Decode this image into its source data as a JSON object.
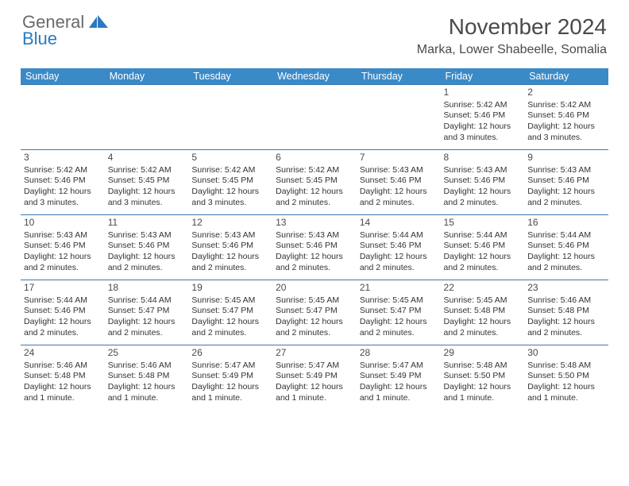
{
  "logo": {
    "line1": "General",
    "line2": "Blue"
  },
  "title": "November 2024",
  "location": "Marka, Lower Shabeelle, Somalia",
  "colors": {
    "header_bg": "#3a8ac8",
    "header_text": "#ffffff",
    "row_border": "#3a79b0",
    "text": "#333333",
    "title_text": "#4a4a4a",
    "logo_gray": "#6a6a6a",
    "logo_blue": "#2a7ac0",
    "background": "#ffffff"
  },
  "typography": {
    "title_fontsize": 28,
    "location_fontsize": 16,
    "weekday_fontsize": 12.5,
    "daynum_fontsize": 12,
    "cell_fontsize": 10.5,
    "font_family": "Arial"
  },
  "weekdays": [
    "Sunday",
    "Monday",
    "Tuesday",
    "Wednesday",
    "Thursday",
    "Friday",
    "Saturday"
  ],
  "weeks": [
    [
      null,
      null,
      null,
      null,
      null,
      {
        "n": "1",
        "sr": "5:42 AM",
        "ss": "5:46 PM",
        "dl": "12 hours and 3 minutes."
      },
      {
        "n": "2",
        "sr": "5:42 AM",
        "ss": "5:46 PM",
        "dl": "12 hours and 3 minutes."
      }
    ],
    [
      {
        "n": "3",
        "sr": "5:42 AM",
        "ss": "5:46 PM",
        "dl": "12 hours and 3 minutes."
      },
      {
        "n": "4",
        "sr": "5:42 AM",
        "ss": "5:45 PM",
        "dl": "12 hours and 3 minutes."
      },
      {
        "n": "5",
        "sr": "5:42 AM",
        "ss": "5:45 PM",
        "dl": "12 hours and 3 minutes."
      },
      {
        "n": "6",
        "sr": "5:42 AM",
        "ss": "5:45 PM",
        "dl": "12 hours and 2 minutes."
      },
      {
        "n": "7",
        "sr": "5:43 AM",
        "ss": "5:46 PM",
        "dl": "12 hours and 2 minutes."
      },
      {
        "n": "8",
        "sr": "5:43 AM",
        "ss": "5:46 PM",
        "dl": "12 hours and 2 minutes."
      },
      {
        "n": "9",
        "sr": "5:43 AM",
        "ss": "5:46 PM",
        "dl": "12 hours and 2 minutes."
      }
    ],
    [
      {
        "n": "10",
        "sr": "5:43 AM",
        "ss": "5:46 PM",
        "dl": "12 hours and 2 minutes."
      },
      {
        "n": "11",
        "sr": "5:43 AM",
        "ss": "5:46 PM",
        "dl": "12 hours and 2 minutes."
      },
      {
        "n": "12",
        "sr": "5:43 AM",
        "ss": "5:46 PM",
        "dl": "12 hours and 2 minutes."
      },
      {
        "n": "13",
        "sr": "5:43 AM",
        "ss": "5:46 PM",
        "dl": "12 hours and 2 minutes."
      },
      {
        "n": "14",
        "sr": "5:44 AM",
        "ss": "5:46 PM",
        "dl": "12 hours and 2 minutes."
      },
      {
        "n": "15",
        "sr": "5:44 AM",
        "ss": "5:46 PM",
        "dl": "12 hours and 2 minutes."
      },
      {
        "n": "16",
        "sr": "5:44 AM",
        "ss": "5:46 PM",
        "dl": "12 hours and 2 minutes."
      }
    ],
    [
      {
        "n": "17",
        "sr": "5:44 AM",
        "ss": "5:46 PM",
        "dl": "12 hours and 2 minutes."
      },
      {
        "n": "18",
        "sr": "5:44 AM",
        "ss": "5:47 PM",
        "dl": "12 hours and 2 minutes."
      },
      {
        "n": "19",
        "sr": "5:45 AM",
        "ss": "5:47 PM",
        "dl": "12 hours and 2 minutes."
      },
      {
        "n": "20",
        "sr": "5:45 AM",
        "ss": "5:47 PM",
        "dl": "12 hours and 2 minutes."
      },
      {
        "n": "21",
        "sr": "5:45 AM",
        "ss": "5:47 PM",
        "dl": "12 hours and 2 minutes."
      },
      {
        "n": "22",
        "sr": "5:45 AM",
        "ss": "5:48 PM",
        "dl": "12 hours and 2 minutes."
      },
      {
        "n": "23",
        "sr": "5:46 AM",
        "ss": "5:48 PM",
        "dl": "12 hours and 2 minutes."
      }
    ],
    [
      {
        "n": "24",
        "sr": "5:46 AM",
        "ss": "5:48 PM",
        "dl": "12 hours and 1 minute."
      },
      {
        "n": "25",
        "sr": "5:46 AM",
        "ss": "5:48 PM",
        "dl": "12 hours and 1 minute."
      },
      {
        "n": "26",
        "sr": "5:47 AM",
        "ss": "5:49 PM",
        "dl": "12 hours and 1 minute."
      },
      {
        "n": "27",
        "sr": "5:47 AM",
        "ss": "5:49 PM",
        "dl": "12 hours and 1 minute."
      },
      {
        "n": "28",
        "sr": "5:47 AM",
        "ss": "5:49 PM",
        "dl": "12 hours and 1 minute."
      },
      {
        "n": "29",
        "sr": "5:48 AM",
        "ss": "5:50 PM",
        "dl": "12 hours and 1 minute."
      },
      {
        "n": "30",
        "sr": "5:48 AM",
        "ss": "5:50 PM",
        "dl": "12 hours and 1 minute."
      }
    ]
  ],
  "labels": {
    "sunrise": "Sunrise:",
    "sunset": "Sunset:",
    "daylight": "Daylight:"
  }
}
